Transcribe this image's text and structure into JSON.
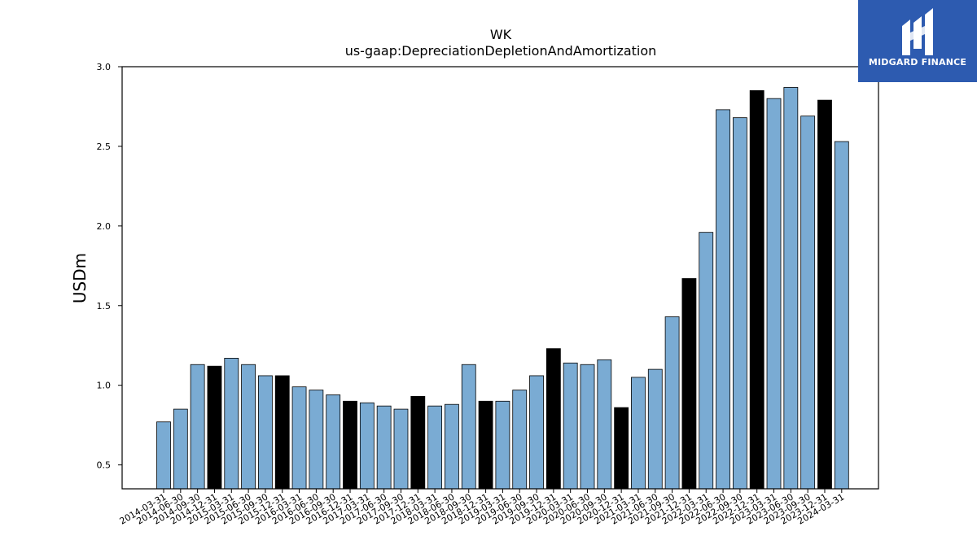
{
  "brand": {
    "name": "MIDGARD FINANCE",
    "color": "#2d5bb0",
    "icon": "midgard-logo-icon"
  },
  "chart_data": {
    "type": "bar",
    "title": "WK",
    "subtitle": "us-gaap:DepreciationDepletionAndAmortization",
    "xlabel": "",
    "ylabel": "USDm",
    "ylim": [
      0.35,
      3.0
    ],
    "yticks": [
      0.5,
      1.0,
      1.5,
      2.0,
      2.5,
      3.0
    ],
    "ytick_labels": [
      "0.5",
      "1.0",
      "1.5",
      "2.0",
      "2.5",
      "3.0"
    ],
    "grid": false,
    "colors": {
      "quarter": "#7aabd3",
      "year_end": "#000000",
      "edge": "#000000"
    },
    "categories": [
      "2014-03-31",
      "2014-06-30",
      "2014-09-30",
      "2014-12-31",
      "2015-03-31",
      "2015-06-30",
      "2015-09-30",
      "2015-12-31",
      "2016-03-31",
      "2016-06-30",
      "2016-09-30",
      "2016-12-31",
      "2017-03-31",
      "2017-06-30",
      "2017-09-30",
      "2017-12-31",
      "2018-03-31",
      "2018-06-30",
      "2018-09-30",
      "2018-12-31",
      "2019-03-31",
      "2019-06-30",
      "2019-09-30",
      "2019-12-31",
      "2020-03-31",
      "2020-06-30",
      "2020-09-30",
      "2020-12-31",
      "2021-03-31",
      "2021-06-30",
      "2021-09-30",
      "2021-12-31",
      "2022-03-31",
      "2022-06-30",
      "2022-09-30",
      "2022-12-31",
      "2023-03-31",
      "2023-06-30",
      "2023-09-30",
      "2023-12-31",
      "2024-03-31"
    ],
    "values": [
      0.77,
      0.85,
      1.13,
      1.12,
      1.17,
      1.13,
      1.06,
      1.06,
      0.99,
      0.97,
      0.94,
      0.9,
      0.89,
      0.87,
      0.85,
      0.93,
      0.87,
      0.88,
      1.13,
      0.9,
      0.9,
      0.97,
      1.06,
      1.23,
      1.14,
      1.13,
      1.16,
      0.86,
      1.05,
      1.1,
      1.43,
      1.67,
      1.96,
      2.73,
      2.68,
      2.85,
      2.8,
      2.87,
      2.69,
      2.79,
      2.53
    ],
    "highlight": [
      false,
      false,
      false,
      true,
      false,
      false,
      false,
      true,
      false,
      false,
      false,
      true,
      false,
      false,
      false,
      true,
      false,
      false,
      false,
      true,
      false,
      false,
      false,
      true,
      false,
      false,
      false,
      true,
      false,
      false,
      false,
      true,
      false,
      false,
      false,
      true,
      false,
      false,
      false,
      true,
      false
    ]
  }
}
